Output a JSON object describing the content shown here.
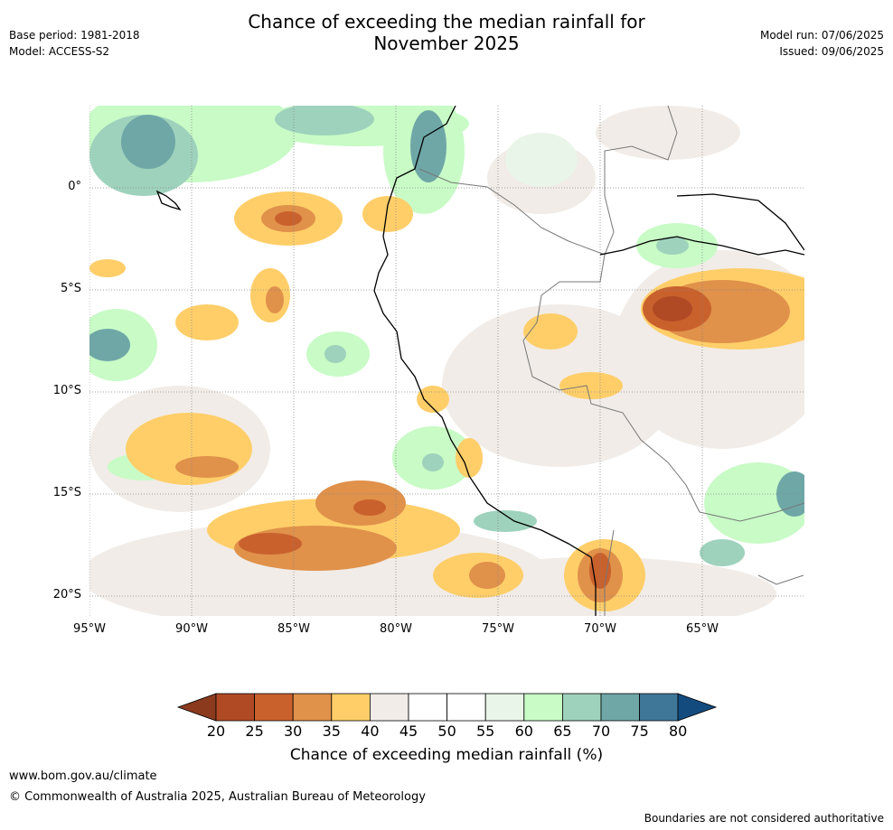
{
  "title_line1": "Chance of exceeding the median rainfall for",
  "title_line2": "November 2025",
  "meta_left": {
    "base_period": "Base period: 1981-2018",
    "model": "Model: ACCESS-S2"
  },
  "meta_right": {
    "model_run": "Model run: 07/06/2025",
    "issued": "Issued: 09/06/2025"
  },
  "map": {
    "lon_labels": [
      "95°W",
      "90°W",
      "85°W",
      "80°W",
      "75°W",
      "70°W",
      "65°W"
    ],
    "lat_labels": [
      "0°",
      "5°S",
      "10°S",
      "15°S",
      "20°S"
    ],
    "gridlines": true,
    "lon_range": [
      -95,
      -60
    ],
    "lat_range": [
      -21,
      4
    ]
  },
  "colorbar": {
    "title": "Chance of exceeding median rainfall (%)",
    "ticks": [
      "20",
      "25",
      "30",
      "35",
      "40",
      "45",
      "50",
      "55",
      "60",
      "65",
      "70",
      "75",
      "80"
    ],
    "under_color": "#8b3a1e",
    "over_color": "#134b7f",
    "colors": [
      "#b04a25",
      "#c9612d",
      "#e0914a",
      "#ffce69",
      "#f1ece7",
      "#ffffff",
      "#ffffff",
      "#e9f5e8",
      "#c8fbc6",
      "#9ed2bc",
      "#6fa7a7",
      "#3f7799"
    ]
  },
  "footer": {
    "url": "www.bom.gov.au/climate",
    "copyright": "© Commonwealth of Australia 2025, Australian Bureau of Meteorology",
    "disclaimer": "Boundaries are not considered authoritative"
  }
}
